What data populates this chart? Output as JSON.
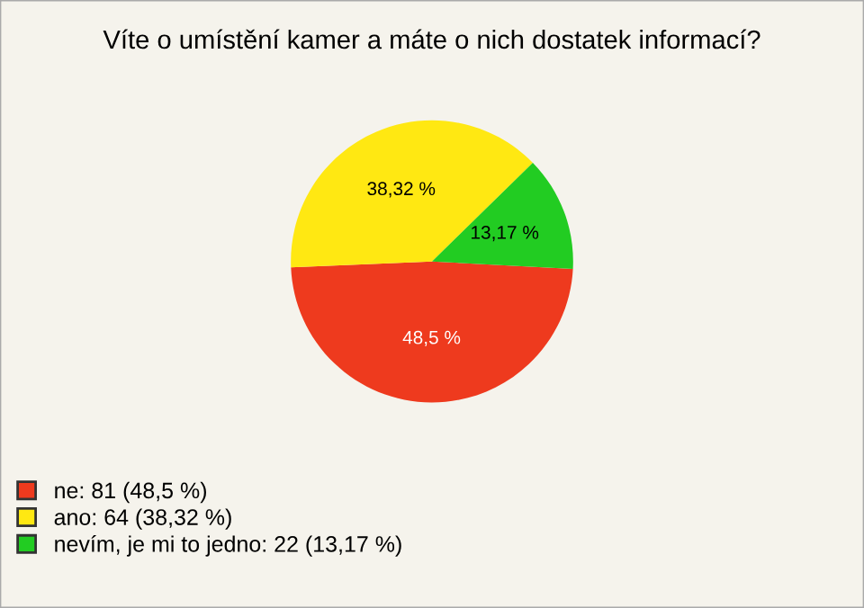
{
  "chart_data": {
    "type": "pie",
    "title": "Víte o umístění kamer a máte o nich dostatek informací?",
    "categories": [
      "ne: 81 (48,5 %)",
      "ano: 64 (38,32 %)",
      "nevím, je mi to jedno: 22 (13,17 %)"
    ],
    "values": [
      48.5,
      38.32,
      13.17
    ],
    "value_labels": [
      "48,5 %",
      "38,32 %",
      "13,17 %"
    ],
    "colors": [
      "#ee3a1e",
      "#ffe812",
      "#22cc22"
    ],
    "legend": "bottom left"
  }
}
